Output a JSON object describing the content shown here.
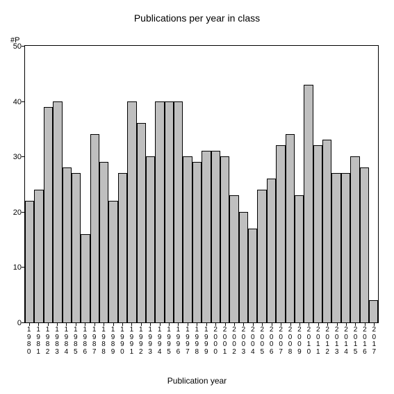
{
  "chart": {
    "type": "bar",
    "title": "Publications per year in class",
    "title_fontsize": 14,
    "y_axis_label": "#P",
    "x_axis_label": "Publication year",
    "x_axis_label_fontsize": 12,
    "categories": [
      "1980",
      "1981",
      "1982",
      "1983",
      "1984",
      "1985",
      "1986",
      "1987",
      "1988",
      "1989",
      "1990",
      "1991",
      "1992",
      "1993",
      "1994",
      "1995",
      "1996",
      "1997",
      "1998",
      "1999",
      "2000",
      "2001",
      "2002",
      "2003",
      "2004",
      "2005",
      "2006",
      "2007",
      "2008",
      "2009",
      "2010",
      "2011",
      "2012",
      "2013",
      "2014",
      "2015",
      "2016",
      "2017"
    ],
    "values": [
      22,
      24,
      39,
      40,
      28,
      27,
      16,
      34,
      29,
      22,
      27,
      40,
      36,
      30,
      40,
      40,
      40,
      30,
      29,
      31,
      31,
      30,
      23,
      20,
      17,
      24,
      26,
      32,
      34,
      23,
      43,
      32,
      33,
      27,
      27,
      30,
      28,
      4
    ],
    "ylim": [
      0,
      50
    ],
    "yticks": [
      0,
      10,
      20,
      30,
      40,
      50
    ],
    "bar_fill": "#bfbfbf",
    "bar_border": "#000000",
    "axis_color": "#000000",
    "background_color": "#ffffff",
    "tick_fontsize": 11,
    "xlabel_fontsize": 10
  }
}
